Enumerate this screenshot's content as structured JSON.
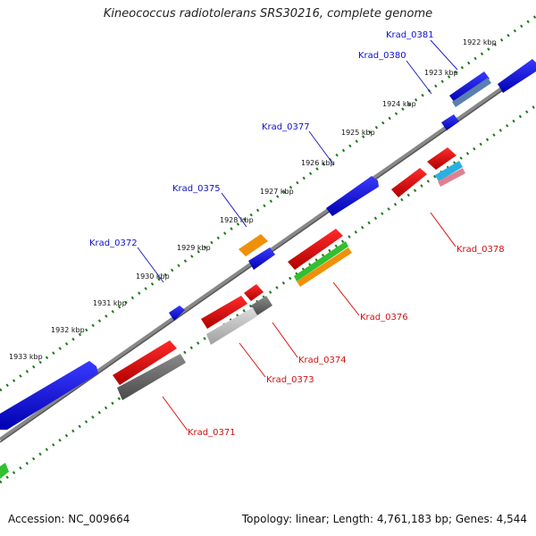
{
  "title": "Kineococcus radiotolerans SRS30216, complete genome",
  "footer": {
    "accession": "Accession: NC_009664",
    "stats": "Topology: linear; Length: 4,761,183 bp; Genes: 4,544"
  },
  "kbp_labels": [
    "1922 kbp",
    "1923 kbp",
    "1924 kbp",
    "1925 kbp",
    "1926 kbp",
    "1927 kbp",
    "1928 kbp",
    "1929 kbp",
    "1930 kbp",
    "1931 kbp",
    "1932 kbp",
    "1933 kbp"
  ],
  "gene_labels": {
    "krad_0381": "Krad_0381",
    "krad_0380": "Krad_0380",
    "krad_0377": "Krad_0377",
    "krad_0375": "Krad_0375",
    "krad_0372": "Krad_0372",
    "krad_0378": "Krad_0378",
    "krad_0376": "Krad_0376",
    "krad_0374": "Krad_0374",
    "krad_0373": "Krad_0373",
    "krad_0371": "Krad_0371"
  },
  "colors": {
    "forward_gene": "#1010e0",
    "reverse_gene": "#e00000",
    "dotted_track": "#1a7a1a",
    "axis": "#888888"
  }
}
